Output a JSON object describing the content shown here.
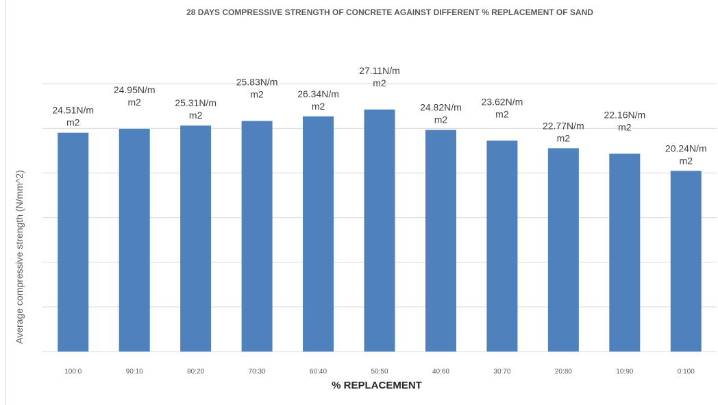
{
  "chart_data": {
    "type": "bar",
    "title": "28 DAYS COMPRESSIVE STRENGTH OF CONCRETE AGAINST DIFFERENT % REPLACEMENT OF SAND",
    "xlabel": "% REPLACEMENT",
    "ylabel": "Average compressive strength (N/mm^2)",
    "categories": [
      "100:0",
      "90:10",
      "80:20",
      "70:30",
      "60:40",
      "50:50",
      "40:60",
      "30:70",
      "20:80",
      "10:90",
      "0:100"
    ],
    "values": [
      24.51,
      24.95,
      25.31,
      25.83,
      26.34,
      27.11,
      24.82,
      23.62,
      22.77,
      22.16,
      20.24
    ],
    "data_labels": [
      [
        "24.51N/m",
        "m2"
      ],
      [
        "24.95N/m",
        "m2"
      ],
      [
        "25.31N/m",
        "m2"
      ],
      [
        "25.83N/m",
        "m2"
      ],
      [
        "26.34N/m",
        "m2"
      ],
      [
        "27.11N/m",
        "m2"
      ],
      [
        "24.82N/m",
        "m2"
      ],
      [
        "23.62N/m",
        "m2"
      ],
      [
        "22.77N/m",
        "m2"
      ],
      [
        "22.16N/m",
        "m2"
      ],
      [
        "20.24N/m",
        "m2"
      ]
    ],
    "ylim": [
      0,
      35
    ],
    "grid": true,
    "bar_color": "#4f81bd",
    "legend": "none"
  }
}
